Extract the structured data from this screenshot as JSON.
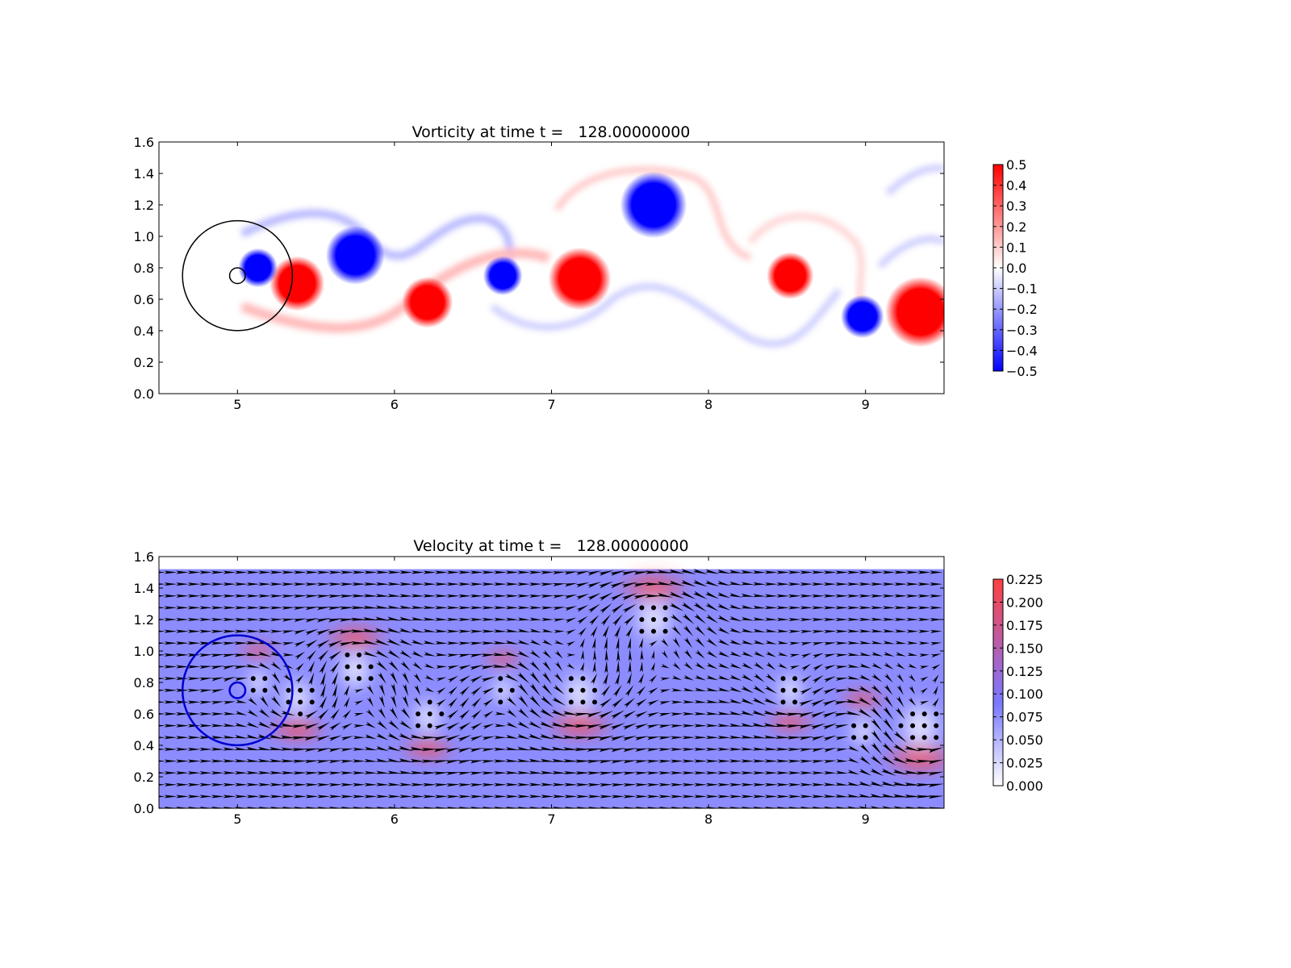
{
  "chart_data": [
    {
      "type": "heatmap",
      "title": "Vorticity at time t =   128.00000000",
      "xlabel": "",
      "ylabel": "",
      "xlim": [
        4.5,
        9.5
      ],
      "ylim": [
        0.0,
        1.6
      ],
      "xticks": [
        "5",
        "6",
        "7",
        "8",
        "9"
      ],
      "yticks": [
        "0.0",
        "0.2",
        "0.4",
        "0.6",
        "0.8",
        "1.0",
        "1.2",
        "1.4",
        "1.6"
      ],
      "colormap": "bwr",
      "clim": [
        -0.5,
        0.5
      ],
      "colorbar_ticks": [
        "0.5",
        "0.4",
        "0.3",
        "0.2",
        "0.1",
        "0.0",
        "−0.1",
        "−0.2",
        "−0.3",
        "−0.4",
        "−0.5"
      ],
      "colors": {
        "positive": "#ff0000",
        "negative": "#0000ff",
        "zero": "#ffffff"
      },
      "circles": [
        {
          "cx": 5.0,
          "cy": 0.75,
          "r": 0.35,
          "color": "#000000"
        },
        {
          "cx": 5.0,
          "cy": 0.75,
          "r": 0.05,
          "color": "#000000"
        }
      ],
      "vortices": [
        {
          "x": 5.38,
          "y": 0.7,
          "r": 0.14,
          "sign": 1
        },
        {
          "x": 5.13,
          "y": 0.8,
          "r": 0.1,
          "sign": -1
        },
        {
          "x": 5.75,
          "y": 0.88,
          "r": 0.15,
          "sign": -1
        },
        {
          "x": 6.21,
          "y": 0.58,
          "r": 0.13,
          "sign": 1
        },
        {
          "x": 6.69,
          "y": 0.75,
          "r": 0.1,
          "sign": -1
        },
        {
          "x": 7.18,
          "y": 0.73,
          "r": 0.16,
          "sign": 1
        },
        {
          "x": 7.65,
          "y": 1.2,
          "r": 0.17,
          "sign": -1
        },
        {
          "x": 8.52,
          "y": 0.75,
          "r": 0.12,
          "sign": 1
        },
        {
          "x": 8.98,
          "y": 0.49,
          "r": 0.11,
          "sign": -1
        },
        {
          "x": 9.35,
          "y": 0.52,
          "r": 0.18,
          "sign": 1
        }
      ]
    },
    {
      "type": "heatmap",
      "title": "Velocity at time t =   128.00000000",
      "xlabel": "",
      "ylabel": "",
      "xlim": [
        4.5,
        9.5
      ],
      "ylim": [
        0.0,
        1.6
      ],
      "xticks": [
        "5",
        "6",
        "7",
        "8",
        "9"
      ],
      "yticks": [
        "0.0",
        "0.2",
        "0.4",
        "0.6",
        "0.8",
        "1.0",
        "1.2",
        "1.4",
        "1.6"
      ],
      "data_ylim": [
        0.0,
        1.52
      ],
      "colormap": "white-blue-red",
      "clim": [
        0.0,
        0.225
      ],
      "colorbar_ticks": [
        "0.225",
        "0.200",
        "0.175",
        "0.150",
        "0.125",
        "0.100",
        "0.075",
        "0.050",
        "0.025",
        "0.000"
      ],
      "colors": {
        "low": "#ffffff",
        "mid": "#8080ff",
        "high": "#ff4040",
        "arrows": "#000000"
      },
      "background_speed": 0.1,
      "circles": [
        {
          "cx": 5.0,
          "cy": 0.75,
          "r": 0.35,
          "color": "#0000cc"
        },
        {
          "cx": 5.0,
          "cy": 0.75,
          "r": 0.05,
          "color": "#0000cc"
        }
      ],
      "quiver": {
        "x_spacing": 0.075,
        "y_spacing": 0.075
      }
    }
  ]
}
